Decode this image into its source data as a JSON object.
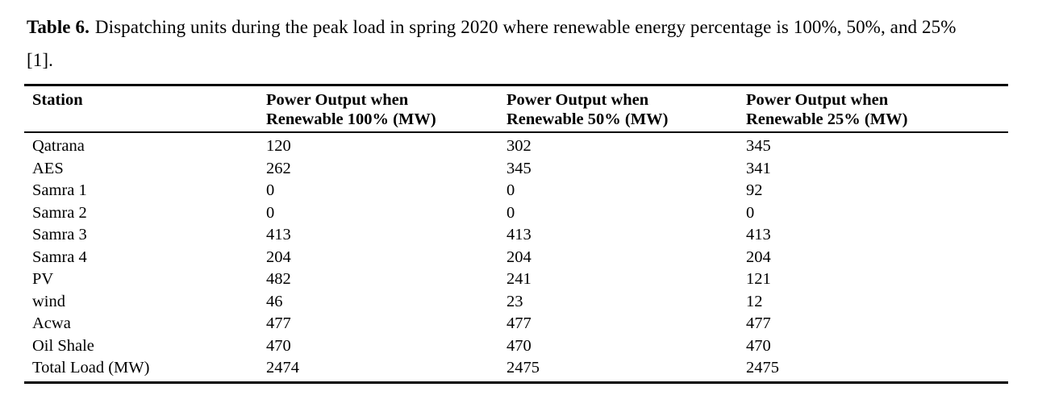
{
  "caption": {
    "label": "Table 6.",
    "text": "Dispatching units during the peak load in spring 2020 where renewable energy percentage is 100%, 50%, and 25% [1]."
  },
  "table": {
    "headers": [
      {
        "line1": "Station",
        "line2": ""
      },
      {
        "line1": "Power Output when",
        "line2": "Renewable 100% (MW)"
      },
      {
        "line1": "Power Output when",
        "line2": "Renewable 50% (MW)"
      },
      {
        "line1": "Power Output when",
        "line2": "Renewable 25% (MW)"
      }
    ],
    "rows": [
      {
        "station": "Qatrana",
        "p100": "120",
        "p50": "302",
        "p25": "345"
      },
      {
        "station": "AES",
        "p100": "262",
        "p50": "345",
        "p25": "341"
      },
      {
        "station": "Samra 1",
        "p100": "0",
        "p50": "0",
        "p25": "92"
      },
      {
        "station": "Samra 2",
        "p100": "0",
        "p50": "0",
        "p25": "0"
      },
      {
        "station": "Samra 3",
        "p100": "413",
        "p50": "413",
        "p25": "413"
      },
      {
        "station": "Samra 4",
        "p100": "204",
        "p50": "204",
        "p25": "204"
      },
      {
        "station": "PV",
        "p100": "482",
        "p50": "241",
        "p25": "121"
      },
      {
        "station": "wind",
        "p100": "46",
        "p50": "23",
        "p25": "12"
      },
      {
        "station": "Acwa",
        "p100": "477",
        "p50": "477",
        "p25": "477"
      },
      {
        "station": "Oil Shale",
        "p100": "470",
        "p50": "470",
        "p25": "470"
      },
      {
        "station": "Total Load (MW)",
        "p100": "2474",
        "p50": "2475",
        "p25": "2475"
      }
    ]
  }
}
